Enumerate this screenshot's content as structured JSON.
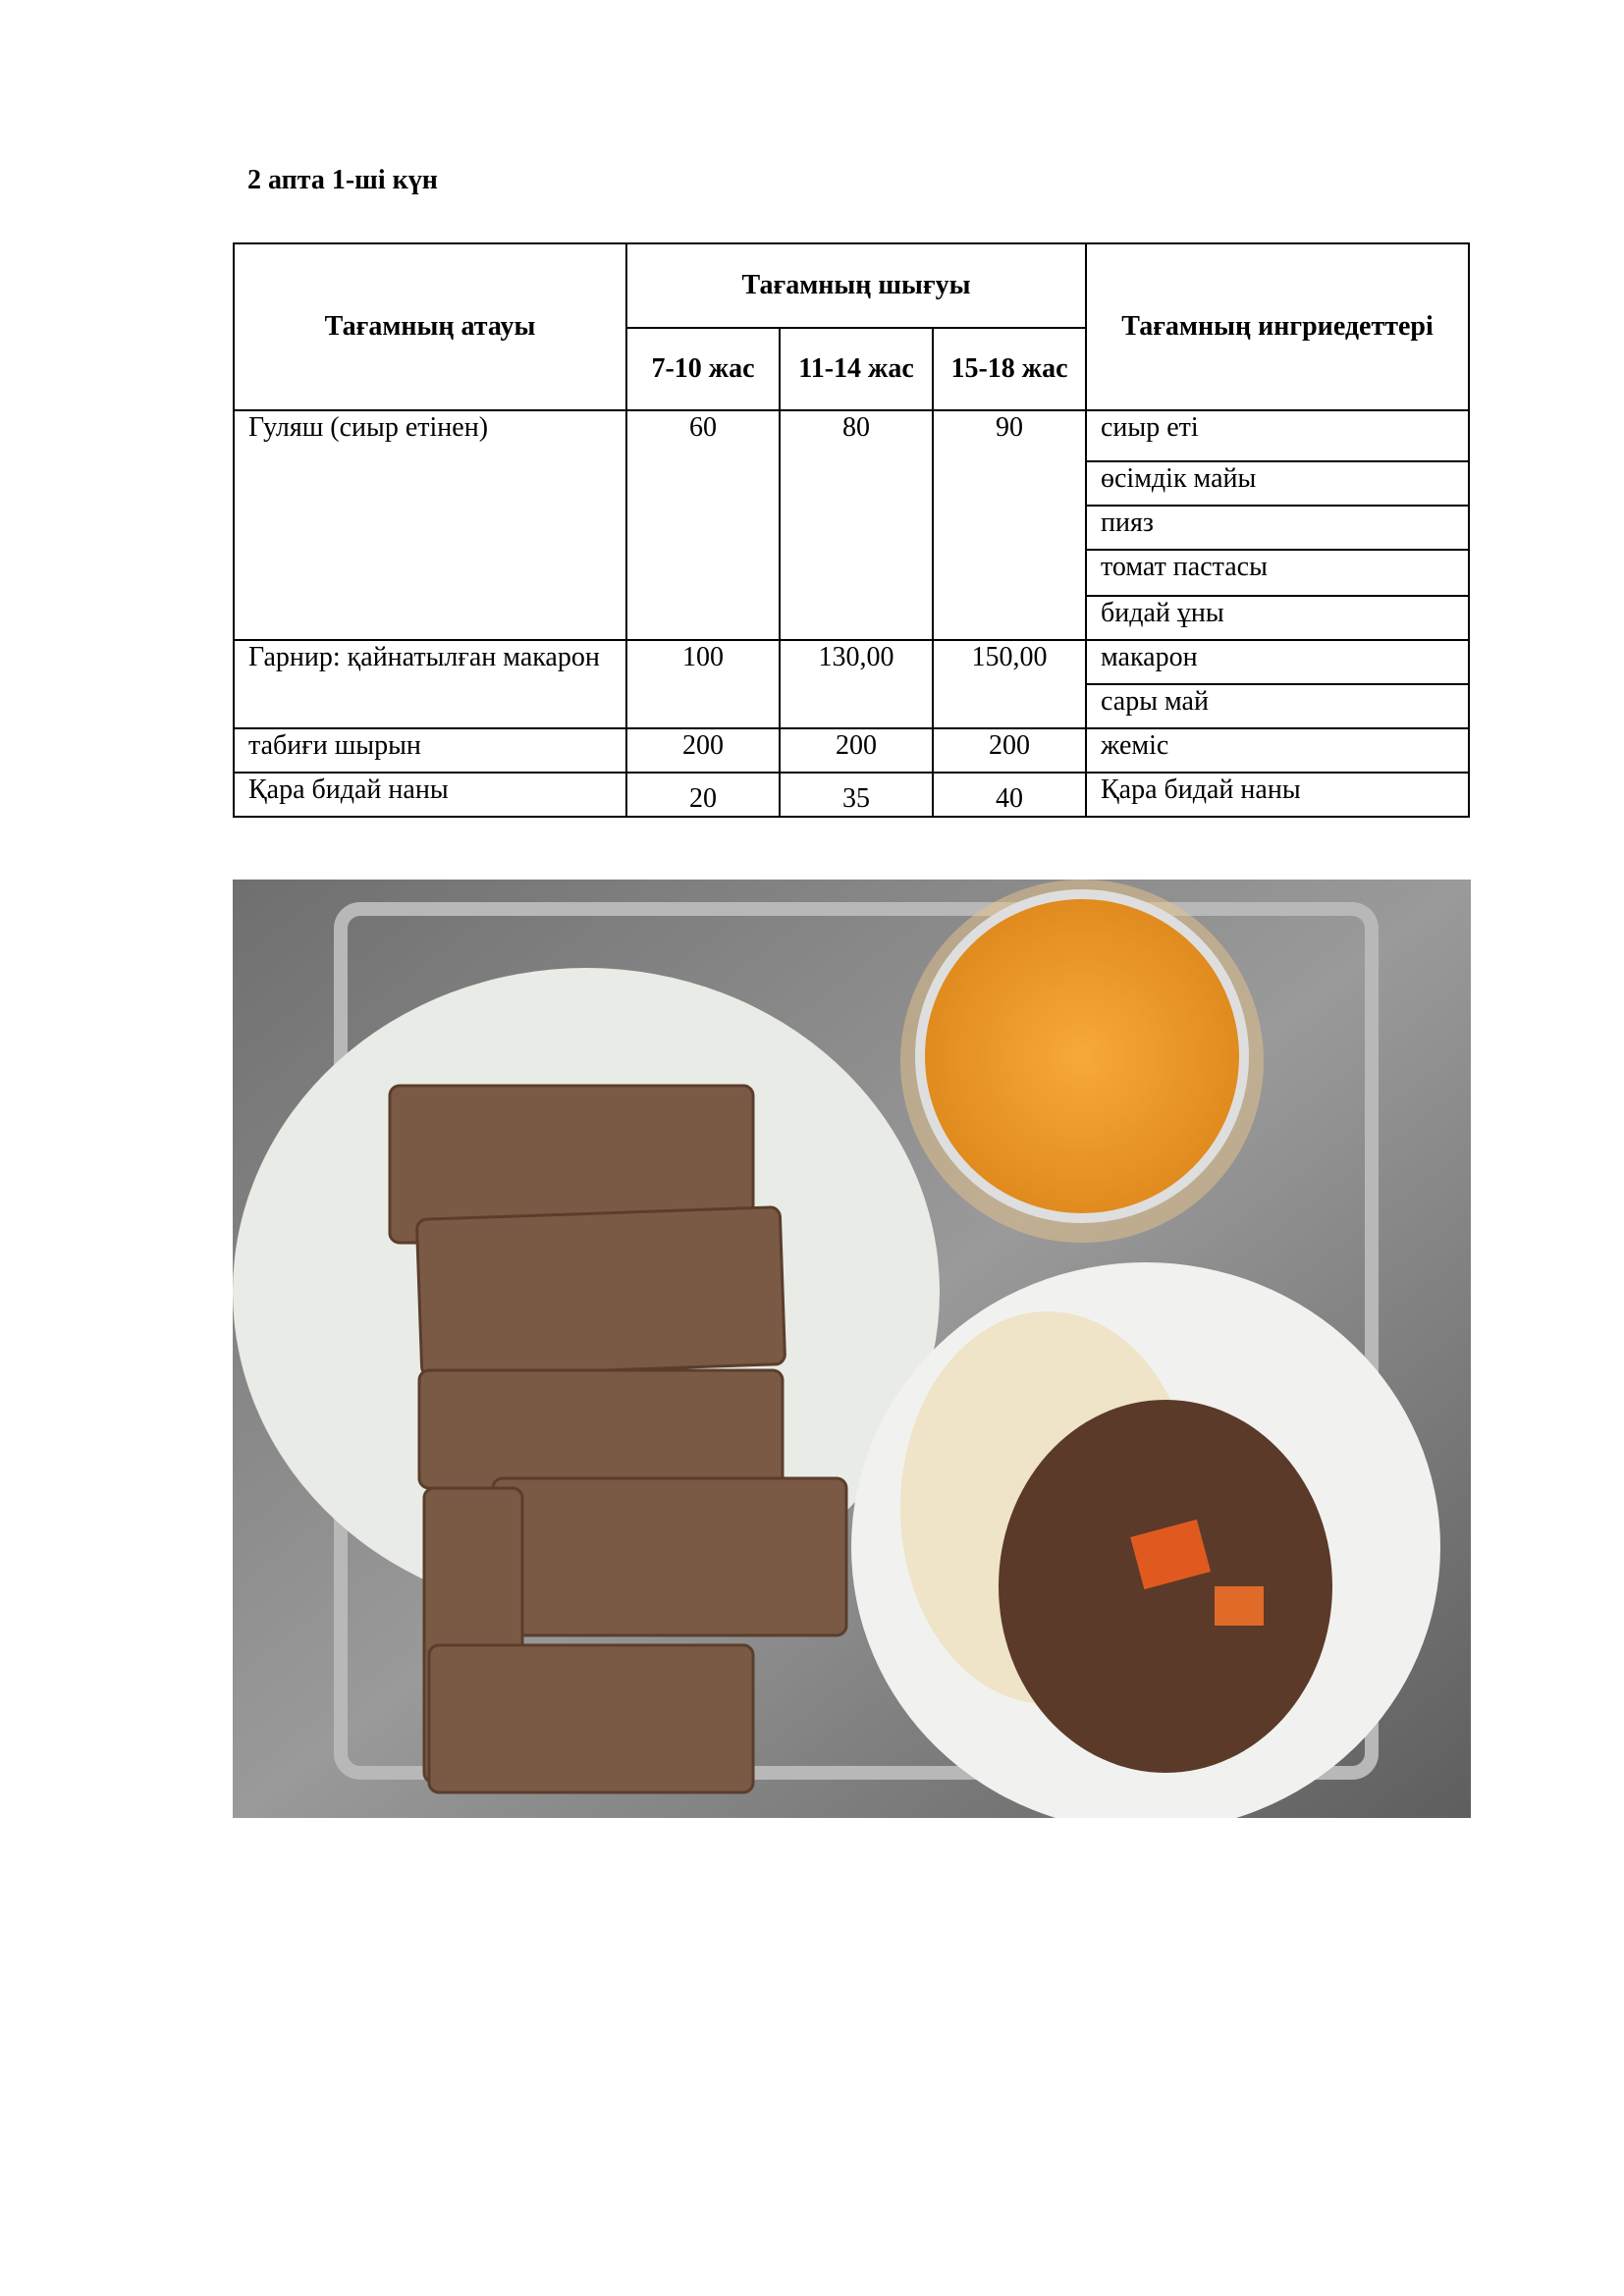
{
  "title": "2 апта 1-ші  күн",
  "table": {
    "headers": {
      "name": "Тағамның атауы",
      "yield": "Тағамның шығуы",
      "ingredients": "Тағамның ингриедеттері",
      "ages": [
        "7-10 жас",
        "11-14 жас",
        "15-18 жас"
      ]
    },
    "rows": [
      {
        "name": "Гуляш (сиыр етінен)",
        "values": [
          "60",
          "80",
          "90"
        ],
        "ingredients": [
          "сиыр еті",
          "өсімдік майы",
          "пияз",
          "томат пастасы",
          "бидай ұны"
        ]
      },
      {
        "name": "Гарнир: қайнатылған макарон",
        "values": [
          "100",
          "130,00",
          "150,00"
        ],
        "ingredients": [
          "макарон",
          "сары май"
        ]
      },
      {
        "name": "табиғи шырын",
        "values": [
          "200",
          "200",
          "200"
        ],
        "ingredients": [
          "жеміс"
        ]
      },
      {
        "name": "Қара бидай наны",
        "values": [
          "20",
          "35",
          "40"
        ],
        "ingredients": [
          "Қара бидай наны"
        ]
      }
    ]
  }
}
